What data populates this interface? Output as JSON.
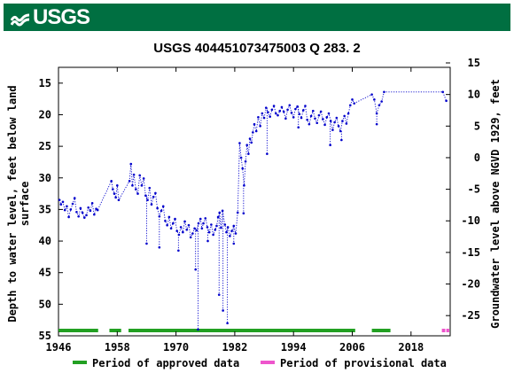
{
  "header": {
    "logo_text": "USGS",
    "brand_color": "#006F41"
  },
  "chart_data": {
    "type": "line",
    "title": "USGS 404451073475003 Q   283. 2",
    "ylabel_left": "Depth to water level, feet below land surface",
    "ylabel_left_lines": [
      "Depth to water level, feet below land",
      "surface"
    ],
    "ylabel_right": "Groundwater level above NGVD 1929, feet",
    "x_ticks": [
      "1946",
      "1958",
      "1970",
      "1982",
      "1994",
      "2006",
      "2018"
    ],
    "x_tick_values": [
      1946,
      1958,
      1970,
      1982,
      1994,
      2006,
      2018
    ],
    "xlim": [
      1946,
      2026
    ],
    "y_left_ticks": [
      "15",
      "20",
      "25",
      "30",
      "35",
      "40",
      "45",
      "50",
      "55"
    ],
    "y_left_tick_values": [
      15,
      20,
      25,
      30,
      35,
      40,
      45,
      50,
      55
    ],
    "ylim_left": [
      55,
      12.5
    ],
    "y_left_inverted": true,
    "y_right_ticks": [
      "15",
      "10",
      "5",
      "0",
      "-5",
      "-10",
      "-15",
      "-20",
      "-25"
    ],
    "y_right_tick_values": [
      15,
      10,
      5,
      0,
      -5,
      -10,
      -15,
      -20,
      -25
    ],
    "ylim_right": [
      -28.2,
      14.3
    ],
    "series": [
      {
        "color": "#0000cc",
        "style": "dotted line with point markers",
        "x": [
          1946.2,
          1946.5,
          1946.9,
          1947.3,
          1947.7,
          1948.1,
          1948.5,
          1948.9,
          1949.3,
          1949.7,
          1950.1,
          1950.5,
          1950.9,
          1951.3,
          1951.7,
          1952.1,
          1952.5,
          1952.9,
          1953.3,
          1953.7,
          1954.0,
          1956.8,
          1957.1,
          1957.4,
          1957.7,
          1958.0,
          1958.3,
          1960.5,
          1960.8,
          1961.1,
          1961.4,
          1961.8,
          1962.2,
          1962.6,
          1963.0,
          1963.4,
          1963.8,
          1964.2,
          1964.6,
          1965.0,
          1965.4,
          1965.8,
          1966.2,
          1966.6,
          1967.0,
          1967.4,
          1967.8,
          1968.2,
          1968.6,
          1969.0,
          1969.4,
          1969.8,
          1970.2,
          1970.6,
          1971.0,
          1971.4,
          1971.8,
          1972.2,
          1972.6,
          1973.0,
          1973.4,
          1973.8,
          1974.2,
          1974.6,
          1975.0,
          1975.3,
          1975.6,
          1976.0,
          1976.4,
          1976.8,
          1977.2,
          1977.6,
          1978.0,
          1978.3,
          1978.6,
          1978.9,
          1979.2,
          1979.5,
          1980.0,
          1980.3,
          1980.6,
          1981.0,
          1981.4,
          1981.8,
          1982.2,
          1982.6,
          1983.0,
          1983.3,
          1983.6,
          1983.9,
          1984.2,
          1984.5,
          1984.8,
          1985.1,
          1985.4,
          1985.7,
          1986.0,
          1986.4,
          1986.8,
          1987.2,
          1987.6,
          1988.0,
          1988.4,
          1988.8,
          1989.2,
          1989.6,
          1990.0,
          1990.4,
          1990.8,
          1991.2,
          1991.6,
          1992.0,
          1992.4,
          1992.8,
          1993.2,
          1993.6,
          1994.0,
          1994.4,
          1994.8,
          1995.2,
          1995.6,
          1996.0,
          1996.4,
          1996.8,
          1997.2,
          1997.6,
          1998.0,
          1998.4,
          1998.8,
          1999.2,
          1999.6,
          2000.0,
          2000.4,
          2000.8,
          2001.2,
          2001.6,
          2002.0,
          2002.4,
          2002.8,
          2003.2,
          2003.6,
          2004.0,
          2004.4,
          2004.8,
          2005.2,
          2005.6,
          2006.0,
          2006.4,
          2010.0,
          2010.5,
          2011.0,
          2011.5,
          2012.0,
          2012.5,
          2024.5,
          2025.2
        ],
        "y": [
          33.5,
          34.2,
          33.8,
          35.1,
          34.5,
          36.2,
          35.0,
          34.1,
          33.2,
          35.4,
          36.1,
          34.8,
          35.5,
          36.3,
          35.9,
          34.7,
          35.2,
          34.0,
          35.8,
          34.9,
          35.1,
          30.5,
          31.8,
          32.5,
          33.1,
          31.2,
          33.5,
          30.5,
          27.8,
          31.2,
          29.5,
          31.8,
          32.5,
          29.6,
          31.2,
          30.1,
          32.8,
          33.5,
          31.6,
          34.2,
          33.0,
          32.4,
          34.8,
          36.1,
          35.2,
          34.5,
          36.8,
          37.5,
          36.2,
          38.0,
          37.2,
          36.5,
          38.4,
          39.0,
          37.8,
          38.6,
          36.9,
          38.2,
          37.5,
          39.4,
          38.8,
          38.0,
          38.3,
          37.2,
          36.5,
          38.0,
          37.2,
          36.4,
          37.8,
          38.6,
          37.4,
          39.0,
          38.2,
          37.6,
          36.2,
          35.5,
          37.9,
          35.2,
          37.4,
          38.6,
          37.8,
          39.2,
          38.4,
          37.6,
          38.8,
          35.5,
          24.5,
          26.8,
          28.5,
          31.2,
          27.4,
          24.8,
          26.2,
          23.8,
          24.4,
          22.8,
          21.5,
          22.6,
          20.4,
          21.8,
          19.8,
          20.5,
          18.9,
          19.6,
          20.3,
          19.2,
          18.6,
          19.8,
          20.1,
          19.4,
          18.8,
          19.5,
          20.6,
          19.2,
          18.5,
          19.7,
          20.4,
          19.1,
          18.7,
          19.9,
          20.5,
          19.3,
          18.6,
          20.8,
          21.5,
          20.2,
          19.4,
          20.6,
          21.3,
          20.1,
          19.5,
          20.7,
          21.6,
          20.4,
          19.8,
          21.0,
          22.4,
          21.2,
          20.5,
          21.8,
          22.6,
          21.0,
          20.2,
          21.4,
          19.8,
          18.5,
          17.6,
          18.2,
          16.8,
          17.6,
          19.8,
          18.5,
          17.9,
          16.4,
          16.4,
          17.8
        ],
        "spikes": [
          {
            "x": 1964.0,
            "y": 40.4
          },
          {
            "x": 1966.6,
            "y": 41.0
          },
          {
            "x": 1970.5,
            "y": 41.5
          },
          {
            "x": 1974.0,
            "y": 44.5
          },
          {
            "x": 1974.5,
            "y": 54.0
          },
          {
            "x": 1976.5,
            "y": 40.0
          },
          {
            "x": 1978.8,
            "y": 48.5
          },
          {
            "x": 1979.6,
            "y": 51.0
          },
          {
            "x": 1980.5,
            "y": 53.0
          },
          {
            "x": 1981.8,
            "y": 40.4
          },
          {
            "x": 1983.8,
            "y": 35.6
          },
          {
            "x": 1988.6,
            "y": 26.2
          },
          {
            "x": 1995.0,
            "y": 22.0
          },
          {
            "x": 2001.5,
            "y": 24.8
          },
          {
            "x": 2003.8,
            "y": 24.0
          },
          {
            "x": 2011.0,
            "y": 21.5
          }
        ]
      }
    ],
    "approved_periods": [
      [
        1946.0,
        1954.1
      ],
      [
        1956.4,
        1958.8
      ],
      [
        1960.3,
        2006.6
      ],
      [
        2010.0,
        2013.8
      ]
    ],
    "provisional_periods": [
      [
        2024.3,
        2025.0
      ],
      [
        2025.2,
        2025.8
      ]
    ],
    "legend": [
      {
        "label": "Period of approved data",
        "color": "#22a022"
      },
      {
        "label": "Period of provisional data",
        "color": "#ee55cc"
      }
    ],
    "legend_position": "bottom",
    "grid": false
  }
}
